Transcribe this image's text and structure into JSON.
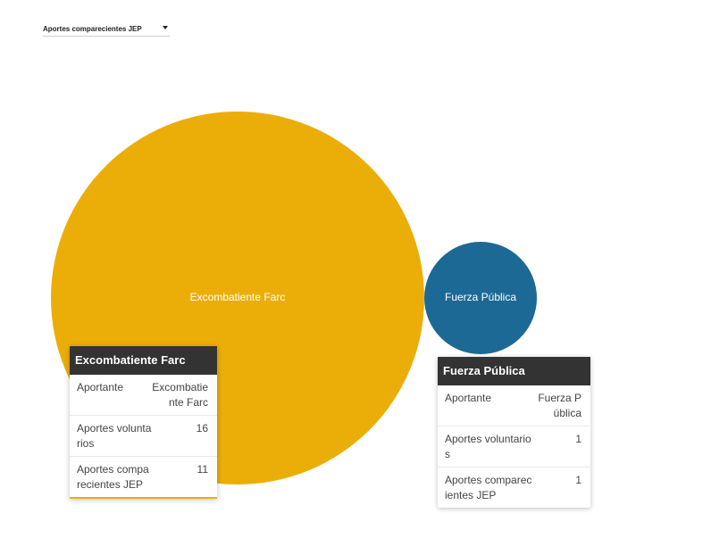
{
  "selector": {
    "label": "Aportes comparecientes JEP"
  },
  "chart_data": {
    "type": "bubble",
    "title": "",
    "metric": "Aportes comparecientes JEP",
    "series": [
      {
        "name": "Excombatiente Farc",
        "value": 11,
        "color": "#EBAE09"
      },
      {
        "name": "Fuerza Pública",
        "value": 1,
        "color": "#1D6996"
      }
    ]
  },
  "tooltips": {
    "farc": {
      "title": "Excombatiente Farc",
      "rows": [
        {
          "key": "Aportante",
          "value": "Excombatiente Farc"
        },
        {
          "key": "Aportes voluntarios",
          "value": "16"
        },
        {
          "key": "Aportes comparecientes JEP",
          "value": "11"
        }
      ]
    },
    "fp": {
      "title": "Fuerza Pública",
      "rows": [
        {
          "key": "Aportante",
          "value": "Fuerza Pública"
        },
        {
          "key": "Aportes voluntarios",
          "value": "1"
        },
        {
          "key": "Aportes comparecientes JEP",
          "value": "1"
        }
      ]
    }
  }
}
